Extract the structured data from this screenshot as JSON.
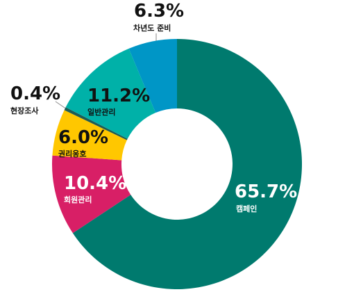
{
  "chart_data": {
    "type": "donut",
    "categories": [
      "캠페인",
      "회원관리",
      "권리옹호",
      "현장조사",
      "일반관리",
      "차년도 준비"
    ],
    "values": [
      65.7,
      10.4,
      6.0,
      0.4,
      11.2,
      6.3
    ],
    "value_labels": [
      "65.7%",
      "10.4%",
      "6.0%",
      "0.4%",
      "11.2%",
      "6.3%"
    ],
    "colors": [
      "#007a6e",
      "#d81f66",
      "#ffc700",
      "#1d5c55",
      "#00b1a8",
      "#0096c6"
    ]
  }
}
